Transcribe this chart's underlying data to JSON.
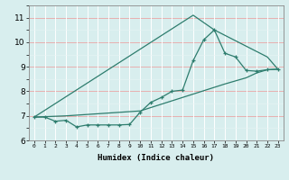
{
  "xlabel": "Humidex (Indice chaleur)",
  "bg_color": "#d8eeee",
  "line_color": "#2e7d6e",
  "xlim": [
    -0.5,
    23.5
  ],
  "ylim": [
    6.0,
    11.5
  ],
  "yticks": [
    6,
    7,
    8,
    9,
    10,
    11
  ],
  "xticks": [
    0,
    1,
    2,
    3,
    4,
    5,
    6,
    7,
    8,
    9,
    10,
    11,
    12,
    13,
    14,
    15,
    16,
    17,
    18,
    19,
    20,
    21,
    22,
    23
  ],
  "series1_x": [
    0,
    1,
    2,
    3,
    4,
    5,
    6,
    7,
    8,
    9,
    10,
    11,
    12,
    13,
    14,
    15,
    16,
    17,
    18,
    19,
    20,
    21,
    22,
    23
  ],
  "series1_y": [
    6.95,
    6.95,
    6.78,
    6.82,
    6.55,
    6.63,
    6.63,
    6.63,
    6.63,
    6.65,
    7.15,
    7.55,
    7.75,
    8.0,
    8.05,
    9.25,
    10.1,
    10.5,
    9.55,
    9.4,
    8.85,
    8.82,
    8.88,
    8.9
  ],
  "series2_x": [
    0,
    15,
    17,
    22,
    23
  ],
  "series2_y": [
    6.95,
    11.1,
    10.5,
    9.4,
    8.9
  ],
  "series3_x": [
    0,
    3,
    10,
    18,
    20,
    21,
    22,
    23
  ],
  "series3_y": [
    6.95,
    7.0,
    7.2,
    8.3,
    8.55,
    8.75,
    8.88,
    8.9
  ]
}
